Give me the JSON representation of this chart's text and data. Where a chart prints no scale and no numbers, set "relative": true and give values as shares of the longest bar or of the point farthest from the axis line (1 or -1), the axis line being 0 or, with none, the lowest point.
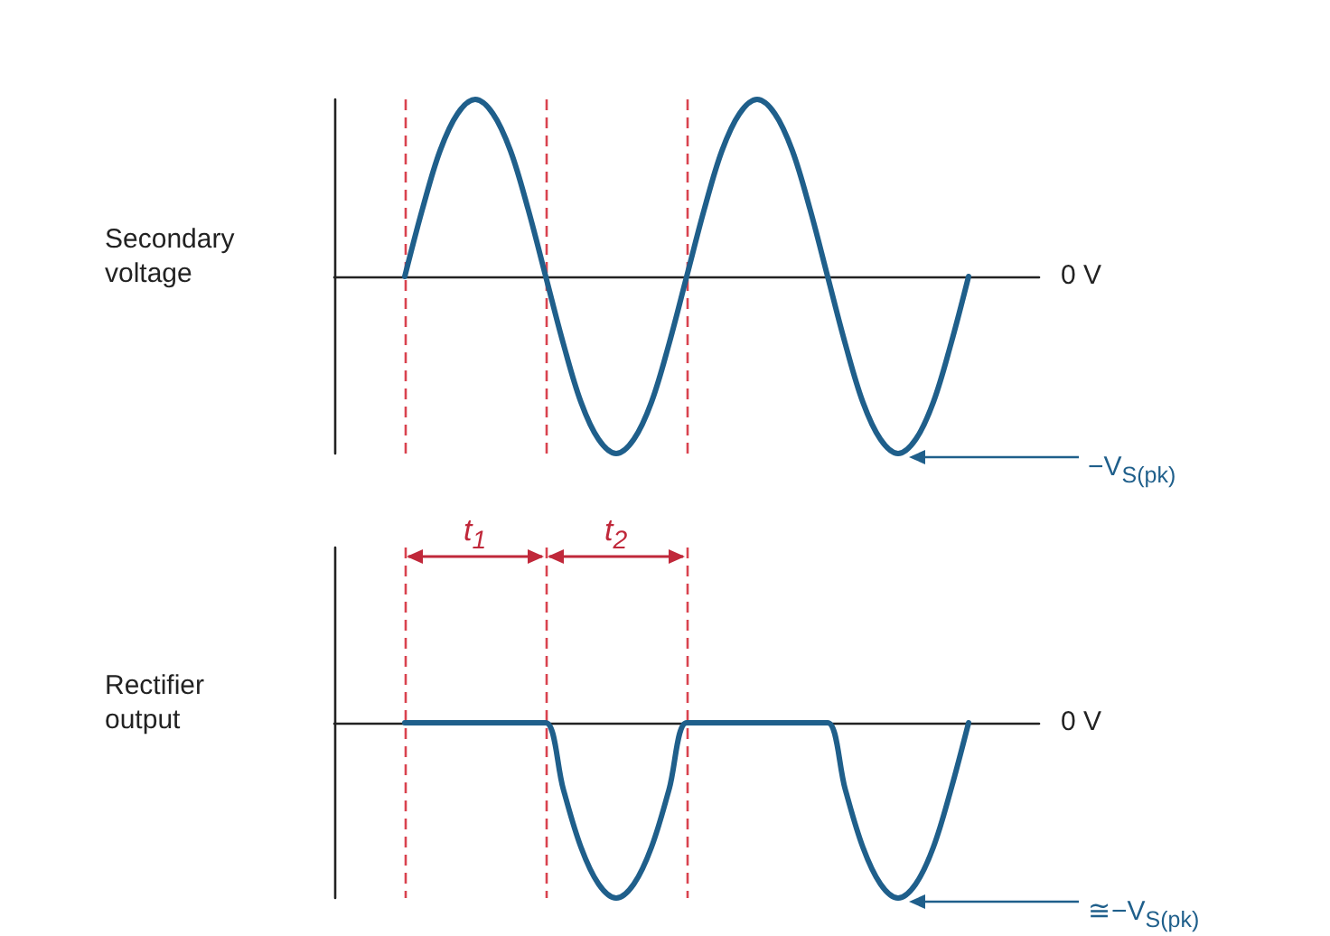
{
  "chart_data": [
    {
      "type": "line",
      "relative": true,
      "ylabel": "Secondary voltage",
      "marker": "none",
      "line_style": "solid",
      "grid": "x",
      "categories": [
        null,
        null,
        null,
        null,
        null,
        null,
        null,
        null,
        null,
        null,
        null,
        null,
        null,
        null,
        null,
        null,
        null,
        null,
        null,
        null,
        null,
        null,
        null,
        null,
        null,
        null,
        null,
        null,
        null,
        null,
        null,
        null,
        null,
        null,
        null,
        null,
        null,
        null,
        null,
        null,
        null
      ],
      "series": [
        {
          "color": "#1f5f8b",
          "values": [
            null,
            null,
            null,
            null,
            0,
            0.38,
            0.71,
            0.92,
            1,
            0.92,
            0.71,
            0.38,
            0,
            -0.38,
            -0.71,
            -0.92,
            -1,
            -0.92,
            -0.71,
            -0.38,
            0,
            0.38,
            0.71,
            0.92,
            1,
            0.92,
            0.71,
            0.38,
            0,
            -0.38,
            -0.71,
            -0.92,
            -1,
            -0.92,
            -0.71,
            -0.38,
            0,
            null,
            null,
            null,
            null
          ]
        }
      ],
      "annotations": [
        "0 V",
        "−V$_{S(pk)}$",
        "t$_{1}$",
        "t$_{2}$"
      ]
    },
    {
      "type": "line",
      "relative": true,
      "ylabel": "Rectifier output",
      "marker": "none",
      "line_style": "solid",
      "grid": "x",
      "categories": [
        null,
        null,
        null,
        null,
        null,
        null,
        null,
        null,
        null,
        null,
        null,
        null,
        null,
        null,
        null,
        null,
        null,
        null,
        null,
        null,
        null,
        null,
        null,
        null,
        null,
        null,
        null,
        null,
        null,
        null,
        null,
        null,
        null,
        null,
        null,
        null,
        null,
        null,
        null,
        null,
        null
      ],
      "series": [
        {
          "color": "#1f5f8b",
          "values": [
            null,
            null,
            null,
            null,
            0,
            0,
            0,
            0,
            0,
            0,
            0,
            0,
            0,
            -0.38,
            -0.71,
            -0.92,
            -1,
            -0.92,
            -0.71,
            -0.38,
            0,
            0,
            0,
            0,
            0,
            0,
            0,
            0,
            0,
            -0.38,
            -0.71,
            -0.92,
            -1,
            -0.92,
            -0.71,
            -0.38,
            0,
            null,
            null,
            null,
            null
          ]
        }
      ],
      "annotations": [
        "0 V",
        "≅−V$_{S(pk)}$"
      ]
    }
  ]
}
